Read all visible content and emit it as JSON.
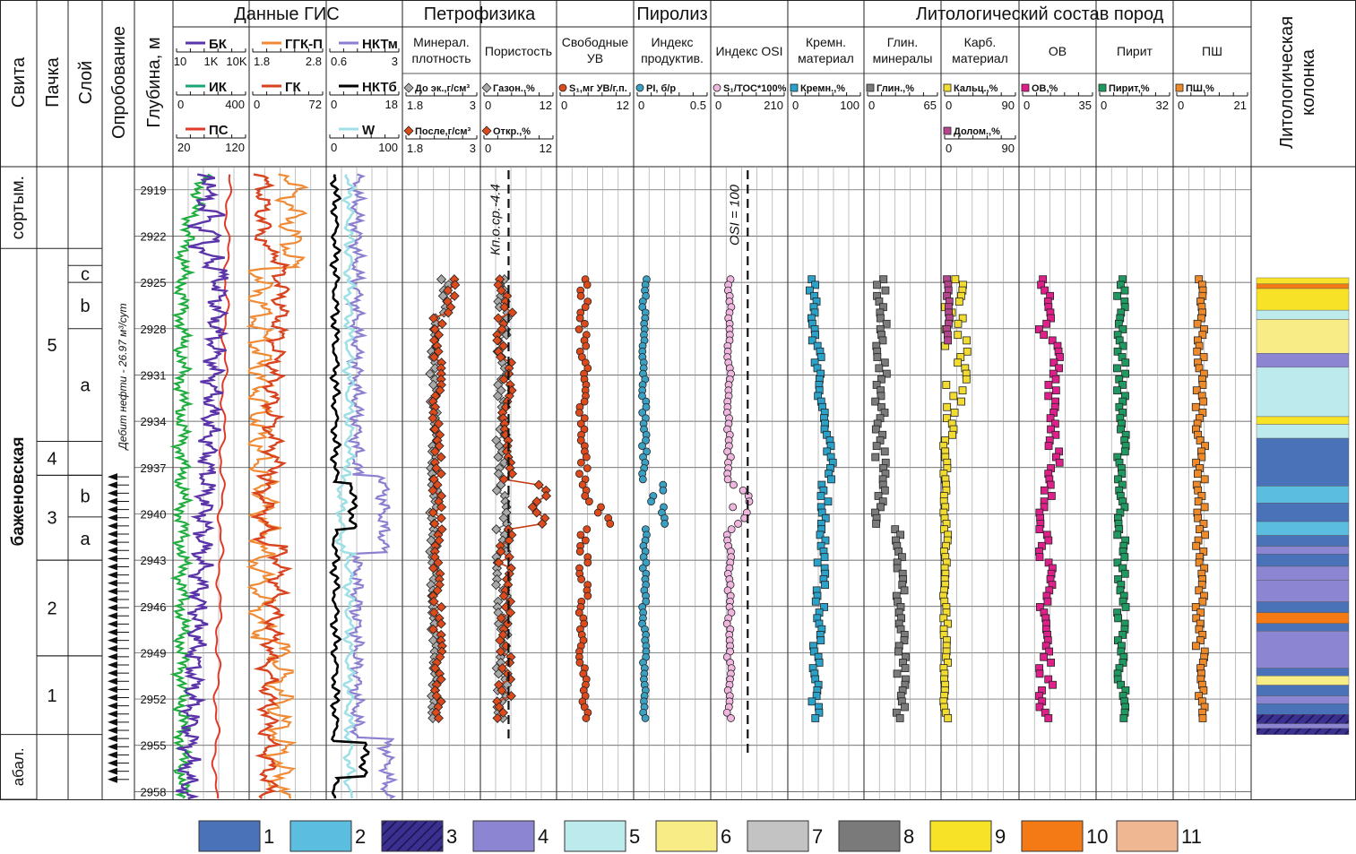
{
  "left_columns": {
    "svita": "Свита",
    "pachka": "Пачка",
    "sloy": "Слой",
    "oprobovanie": "Опробование",
    "depth": "Глубина, м"
  },
  "groups": {
    "gis": "Данные ГИС",
    "petro": "Петрофизика",
    "piroliz": "Пиролиз",
    "lito": "Литологический состав пород",
    "column": "Литологическая колонка"
  },
  "depth_ticks": [
    "2919",
    "2922",
    "2925",
    "2928",
    "2931",
    "2934",
    "2937",
    "2940",
    "2943",
    "2946",
    "2949",
    "2952",
    "2955",
    "2958"
  ],
  "formations": [
    {
      "name": "сортым.",
      "top": 2917.5,
      "bottom": 2922.8
    },
    {
      "name": "баженовская",
      "top": 2922.8,
      "bottom": 2954.3
    },
    {
      "name": "абал.",
      "top": 2954.3,
      "bottom": 2958.5
    }
  ],
  "packs": [
    {
      "name": "5",
      "top": 2922.8,
      "bottom": 2935.3
    },
    {
      "name": "4",
      "top": 2935.3,
      "bottom": 2937.5
    },
    {
      "name": "3",
      "top": 2937.5,
      "bottom": 2943.0
    },
    {
      "name": "2",
      "top": 2943.0,
      "bottom": 2949.2
    },
    {
      "name": "1",
      "top": 2949.2,
      "bottom": 2954.3
    }
  ],
  "layers": [
    {
      "name": "c",
      "top": 2923.9,
      "bottom": 2925.0
    },
    {
      "name": "b",
      "top": 2925.0,
      "bottom": 2928.0
    },
    {
      "name": "a",
      "top": 2928.0,
      "bottom": 2935.3
    },
    {
      "name": "b",
      "top": 2937.5,
      "bottom": 2940.2
    },
    {
      "name": "a",
      "top": 2940.2,
      "bottom": 2943.0
    }
  ],
  "sampling_label": "Дебит нефти - 26.97 м³/сут",
  "annotations": {
    "kp": "Кп.о.ср.-4.4",
    "osi": "OSI = 100"
  },
  "legend": [
    {
      "label": "1",
      "color": "#4a72b8"
    },
    {
      "label": "2",
      "color": "#5bbde0"
    },
    {
      "label": "3",
      "color": "#3b2f8f"
    },
    {
      "label": "4",
      "color": "#8b85d2"
    },
    {
      "label": "5",
      "color": "#bdebed"
    },
    {
      "label": "6",
      "color": "#f8ec86"
    },
    {
      "label": "7",
      "color": "#c3c3c3"
    },
    {
      "label": "8",
      "color": "#7a7a7a"
    },
    {
      "label": "9",
      "color": "#f7e228"
    },
    {
      "label": "10",
      "color": "#f37a15"
    },
    {
      "label": "11",
      "color": "#f0b793"
    }
  ],
  "chart_data": {
    "type": "line",
    "depth_axis": {
      "label": "Глубина, м",
      "range": [
        2917.5,
        2958.5
      ]
    },
    "tracks": [
      {
        "group": "Данные ГИС",
        "curves": [
          {
            "name": "БК",
            "color": "#5a34a8",
            "range": [
              "10",
              "1K",
              "10K"
            ]
          },
          {
            "name": "ИК",
            "color": "#1aa478",
            "range": [
              "0",
              "400"
            ]
          },
          {
            "name": "ПС",
            "color": "#e03a2a",
            "range": [
              "20",
              "120"
            ]
          }
        ]
      },
      {
        "group": "Данные ГИС",
        "curves": [
          {
            "name": "ГГК-П",
            "color": "#f08a35",
            "range": [
              "1.8",
              "2.8"
            ]
          },
          {
            "name": "ГК",
            "color": "#d9431f",
            "range": [
              "0",
              "72"
            ]
          }
        ]
      },
      {
        "group": "Данные ГИС",
        "curves": [
          {
            "name": "НКТм",
            "color": "#8a7fd0",
            "range": [
              "0.6",
              "3"
            ]
          },
          {
            "name": "НКТб",
            "color": "#000000",
            "range": [
              "0",
              "18"
            ]
          },
          {
            "name": "W",
            "color": "#9fe0e6",
            "range": [
              "0",
              "100"
            ]
          }
        ]
      },
      {
        "group": "Петрофизика",
        "title": "Минерал. плотность",
        "series": [
          {
            "name": "До эк.,г/см³",
            "color": "#a9a9a9",
            "range": [
              "1.8",
              "3"
            ]
          },
          {
            "name": "После,г/см³",
            "color": "#dd4a1c",
            "range": [
              "1.8",
              "3"
            ]
          }
        ]
      },
      {
        "group": "Петрофизика",
        "title": "Пористость",
        "series": [
          {
            "name": "Газон.,%",
            "color": "#a9a9a9",
            "range": [
              "0",
              "12"
            ]
          },
          {
            "name": "Откр.,%",
            "color": "#dd4a1c",
            "range": [
              "0",
              "12"
            ]
          }
        ]
      },
      {
        "group": "Пиролиз",
        "title": "Свободные УВ",
        "series": [
          {
            "name": "S₁,мг УВ/г.п.",
            "color": "#dd4a1c",
            "range": [
              "0",
              "12"
            ]
          }
        ]
      },
      {
        "group": "Пиролиз",
        "title": "Индекс продуктив.",
        "series": [
          {
            "name": "PI, б/р",
            "color": "#3aa1c4",
            "range": [
              "0",
              "0.5"
            ]
          }
        ]
      },
      {
        "group": "Пиролиз",
        "title": "Индекс OSI",
        "series": [
          {
            "name": "S₁/TOC*100%",
            "color": "#f1b6e0",
            "range": [
              "0",
              "210"
            ]
          }
        ]
      },
      {
        "group": "Литологический состав пород",
        "title": "Кремн. материал",
        "series": [
          {
            "name": "Кремн.,%",
            "color": "#2aa2c9",
            "range": [
              "0",
              "100"
            ]
          }
        ]
      },
      {
        "group": "Литологический состав пород",
        "title": "Глин. минералы",
        "series": [
          {
            "name": "Глин.,%",
            "color": "#7b7b7b",
            "range": [
              "0",
              "65"
            ]
          }
        ]
      },
      {
        "group": "Литологический состав пород",
        "title": "Карб. материал",
        "series": [
          {
            "name": "Кальц.,%",
            "color": "#f3dc30",
            "range": [
              "0",
              "90"
            ]
          },
          {
            "name": "Долом.,%",
            "color": "#b5468e",
            "range": [
              "0",
              "90"
            ]
          }
        ]
      },
      {
        "group": "Литологический состав пород",
        "title": "ОВ",
        "series": [
          {
            "name": "ОВ,%",
            "color": "#e0208a",
            "range": [
              "0",
              "35"
            ]
          }
        ]
      },
      {
        "group": "Литологический состав пород",
        "title": "Пирит",
        "series": [
          {
            "name": "Пирит,%",
            "color": "#1e9a60",
            "range": [
              "0",
              "32"
            ]
          }
        ]
      },
      {
        "group": "Литологический состав пород",
        "title": "ПШ",
        "series": [
          {
            "name": "ПШ,%",
            "color": "#ef8a2a",
            "range": [
              "0",
              "21"
            ]
          }
        ]
      }
    ],
    "lithology_column": [
      {
        "top": 2924.7,
        "bottom": 2925.1,
        "class": "9"
      },
      {
        "top": 2925.1,
        "bottom": 2925.4,
        "class": "10"
      },
      {
        "top": 2925.4,
        "bottom": 2926.8,
        "class": "9"
      },
      {
        "top": 2926.8,
        "bottom": 2927.4,
        "class": "5"
      },
      {
        "top": 2927.4,
        "bottom": 2929.6,
        "class": "6"
      },
      {
        "top": 2929.6,
        "bottom": 2930.5,
        "class": "4"
      },
      {
        "top": 2930.5,
        "bottom": 2933.7,
        "class": "5"
      },
      {
        "top": 2933.7,
        "bottom": 2934.2,
        "class": "9"
      },
      {
        "top": 2934.2,
        "bottom": 2935.1,
        "class": "5"
      },
      {
        "top": 2935.1,
        "bottom": 2938.2,
        "class": "1"
      },
      {
        "top": 2938.2,
        "bottom": 2939.3,
        "class": "2"
      },
      {
        "top": 2939.3,
        "bottom": 2940.5,
        "class": "1"
      },
      {
        "top": 2940.5,
        "bottom": 2941.4,
        "class": "2"
      },
      {
        "top": 2941.4,
        "bottom": 2942.1,
        "class": "1"
      },
      {
        "top": 2942.1,
        "bottom": 2942.6,
        "class": "4"
      },
      {
        "top": 2942.6,
        "bottom": 2943.4,
        "class": "1"
      },
      {
        "top": 2943.4,
        "bottom": 2944.3,
        "class": "4"
      },
      {
        "top": 2944.3,
        "bottom": 2945.7,
        "class": "4"
      },
      {
        "top": 2945.7,
        "bottom": 2946.4,
        "class": "1"
      },
      {
        "top": 2946.4,
        "bottom": 2947.1,
        "class": "10"
      },
      {
        "top": 2947.1,
        "bottom": 2947.6,
        "class": "1"
      },
      {
        "top": 2947.6,
        "bottom": 2950.0,
        "class": "4"
      },
      {
        "top": 2950.0,
        "bottom": 2950.5,
        "class": "1"
      },
      {
        "top": 2950.5,
        "bottom": 2951.1,
        "class": "6"
      },
      {
        "top": 2951.1,
        "bottom": 2951.8,
        "class": "1"
      },
      {
        "top": 2951.8,
        "bottom": 2952.3,
        "class": "4"
      },
      {
        "top": 2952.3,
        "bottom": 2953.0,
        "class": "1"
      },
      {
        "top": 2953.0,
        "bottom": 2953.6,
        "class": "3"
      },
      {
        "top": 2953.6,
        "bottom": 2953.9,
        "class": "4"
      },
      {
        "top": 2953.9,
        "bottom": 2954.3,
        "class": "3"
      }
    ]
  }
}
